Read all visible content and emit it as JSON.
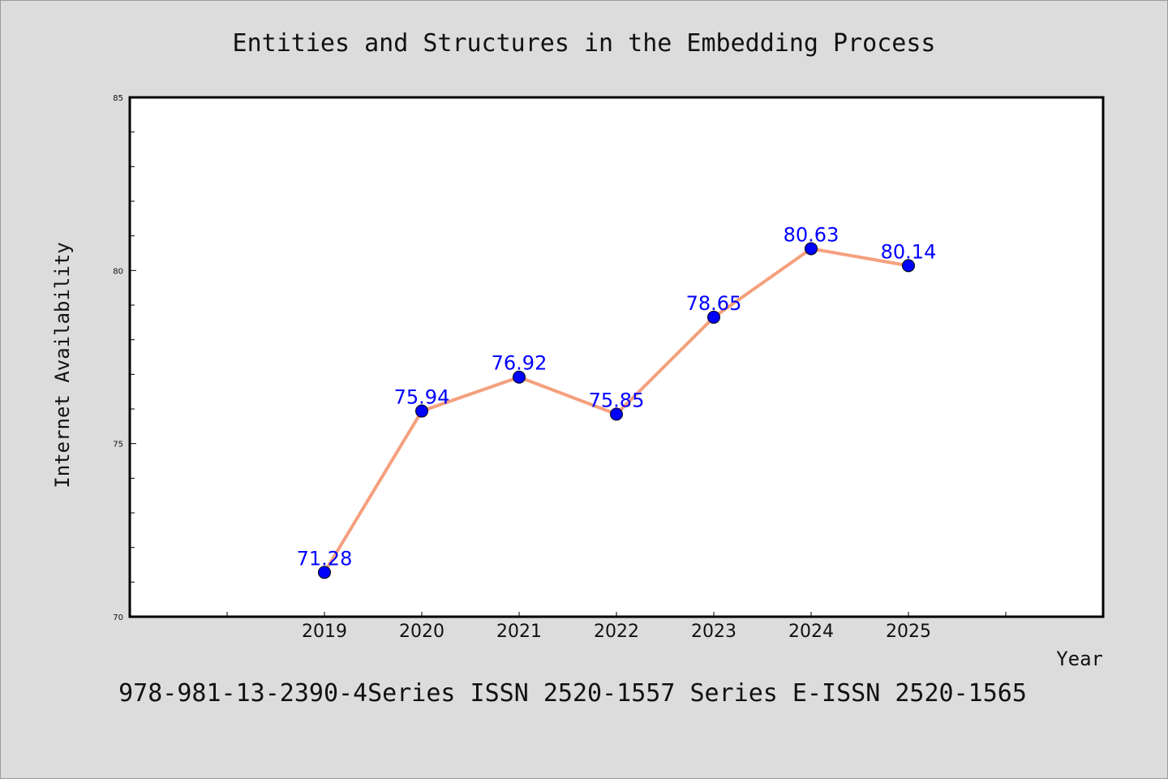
{
  "chart_data": {
    "type": "line",
    "title": "Entities and Structures in the Embedding Process",
    "xlabel": "Year",
    "ylabel": "Internet Availability",
    "categories": [
      "2019",
      "2020",
      "2021",
      "2022",
      "2023",
      "2024",
      "2025"
    ],
    "series": [
      {
        "values": [
          71.28,
          75.94,
          76.92,
          75.85,
          78.65,
          80.63,
          80.14
        ],
        "line_color": "#f5a07e",
        "marker_color": "#0000ff"
      }
    ],
    "data_labels": [
      "71.28",
      "75.94",
      "76.92",
      "75.85",
      "78.65",
      "80.63",
      "80.14"
    ],
    "ylim": [
      70,
      85
    ],
    "yticks": [
      "70",
      "75",
      "80",
      "85"
    ],
    "grid": false,
    "legend": "none"
  },
  "footer": {
    "text": "978-981-13-2390-4Series ISSN 2520-1557 Series E-ISSN 2520-1565"
  },
  "colors": {
    "background": "#dcdcdc",
    "plot_background": "#ffffff",
    "label_color": "#0000ff"
  }
}
